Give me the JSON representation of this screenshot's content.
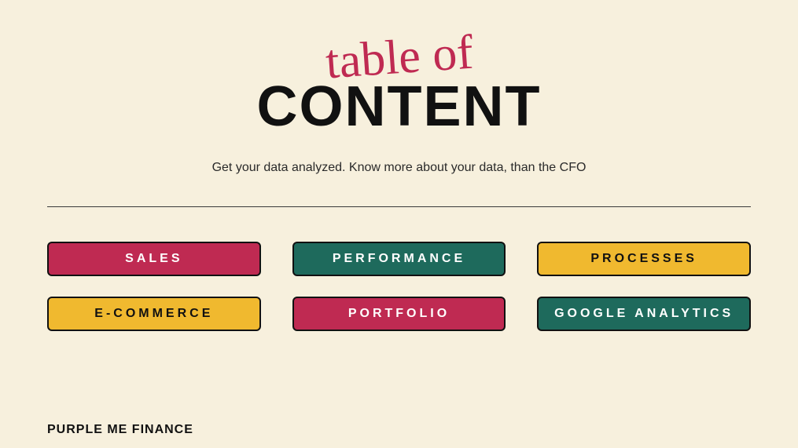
{
  "header": {
    "script_title": "table of",
    "main_title": "CONTENT",
    "script_color": "#bf2a52",
    "main_color": "#111111",
    "subtitle": "Get your data analyzed. Know more about your data, than the CFO"
  },
  "styles": {
    "background_color": "#f7f0dd",
    "divider_color": "#3a3a3a",
    "tile_border_color": "#111111",
    "tile_border_radius": 6,
    "tile_letter_spacing": 4
  },
  "palette": {
    "magenta": {
      "bg": "#bf2a52",
      "fg": "#ffffff"
    },
    "teal": {
      "bg": "#1e6a5c",
      "fg": "#ffffff"
    },
    "yellow": {
      "bg": "#f0b92f",
      "fg": "#111111"
    }
  },
  "tiles": [
    {
      "label": "SALES",
      "color": "magenta"
    },
    {
      "label": "PERFORMANCE",
      "color": "teal"
    },
    {
      "label": "PROCESSES",
      "color": "yellow"
    },
    {
      "label": "E-COMMERCE",
      "color": "yellow"
    },
    {
      "label": "PORTFOLIO",
      "color": "magenta"
    },
    {
      "label": "GOOGLE ANALYTICS",
      "color": "teal"
    }
  ],
  "footer": {
    "brand": "PURPLE ME FINANCE"
  }
}
